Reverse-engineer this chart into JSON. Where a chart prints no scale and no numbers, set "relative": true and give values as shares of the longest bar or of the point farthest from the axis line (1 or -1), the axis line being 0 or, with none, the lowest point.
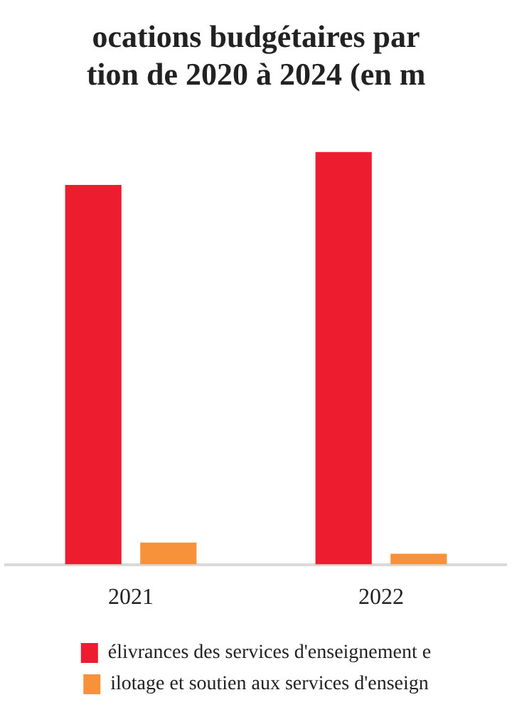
{
  "chart_data": {
    "type": "bar",
    "title": "ocations budgétaires par\ntion de 2020 à 2024 (en m",
    "relative": true,
    "categories": [
      "2021",
      "2022"
    ],
    "series": [
      {
        "name": "élivrances des services d'enseignement e",
        "color": "#ed1c2e",
        "values": [
          0.92,
          1
        ]
      },
      {
        "name": "ilotage et soutien aux services d'enseign",
        "color": "#f7923a",
        "values": [
          0.053,
          0.026
        ]
      }
    ],
    "grid": false,
    "legend": "bottom"
  }
}
